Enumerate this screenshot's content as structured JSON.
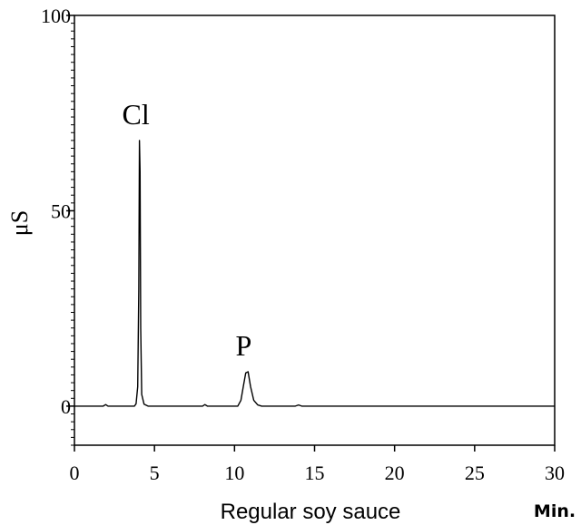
{
  "chart_data": {
    "type": "line",
    "title": "",
    "caption": "Regular soy sauce",
    "xlabel": "Min.",
    "ylabel": "μS",
    "xlim": [
      0,
      30
    ],
    "ylim": [
      -10,
      100
    ],
    "xticks": [
      0,
      5,
      10,
      15,
      20,
      25,
      30
    ],
    "yticks": [
      0,
      50,
      100
    ],
    "grid": false,
    "series": [
      {
        "color": "#000000",
        "points": [
          [
            0,
            0
          ],
          [
            1.8,
            0
          ],
          [
            1.95,
            0.4
          ],
          [
            2.1,
            0
          ],
          [
            3.75,
            0
          ],
          [
            3.85,
            0.6
          ],
          [
            3.95,
            5
          ],
          [
            4.02,
            30
          ],
          [
            4.06,
            68
          ],
          [
            4.1,
            60
          ],
          [
            4.14,
            20
          ],
          [
            4.2,
            3
          ],
          [
            4.35,
            0.5
          ],
          [
            4.6,
            0
          ],
          [
            8.0,
            0
          ],
          [
            8.15,
            0.4
          ],
          [
            8.3,
            0
          ],
          [
            10.2,
            0
          ],
          [
            10.4,
            1.5
          ],
          [
            10.55,
            5
          ],
          [
            10.7,
            8.5
          ],
          [
            10.85,
            8.8
          ],
          [
            11.0,
            5
          ],
          [
            11.2,
            1.5
          ],
          [
            11.45,
            0.3
          ],
          [
            11.7,
            0
          ],
          [
            13.8,
            0
          ],
          [
            14.0,
            0.3
          ],
          [
            14.2,
            0
          ],
          [
            30,
            0
          ]
        ]
      }
    ],
    "annotations": [
      {
        "text": "Cl",
        "x": 4.06,
        "y": 68
      },
      {
        "text": "P",
        "x": 10.8,
        "y": 8.8
      }
    ]
  }
}
